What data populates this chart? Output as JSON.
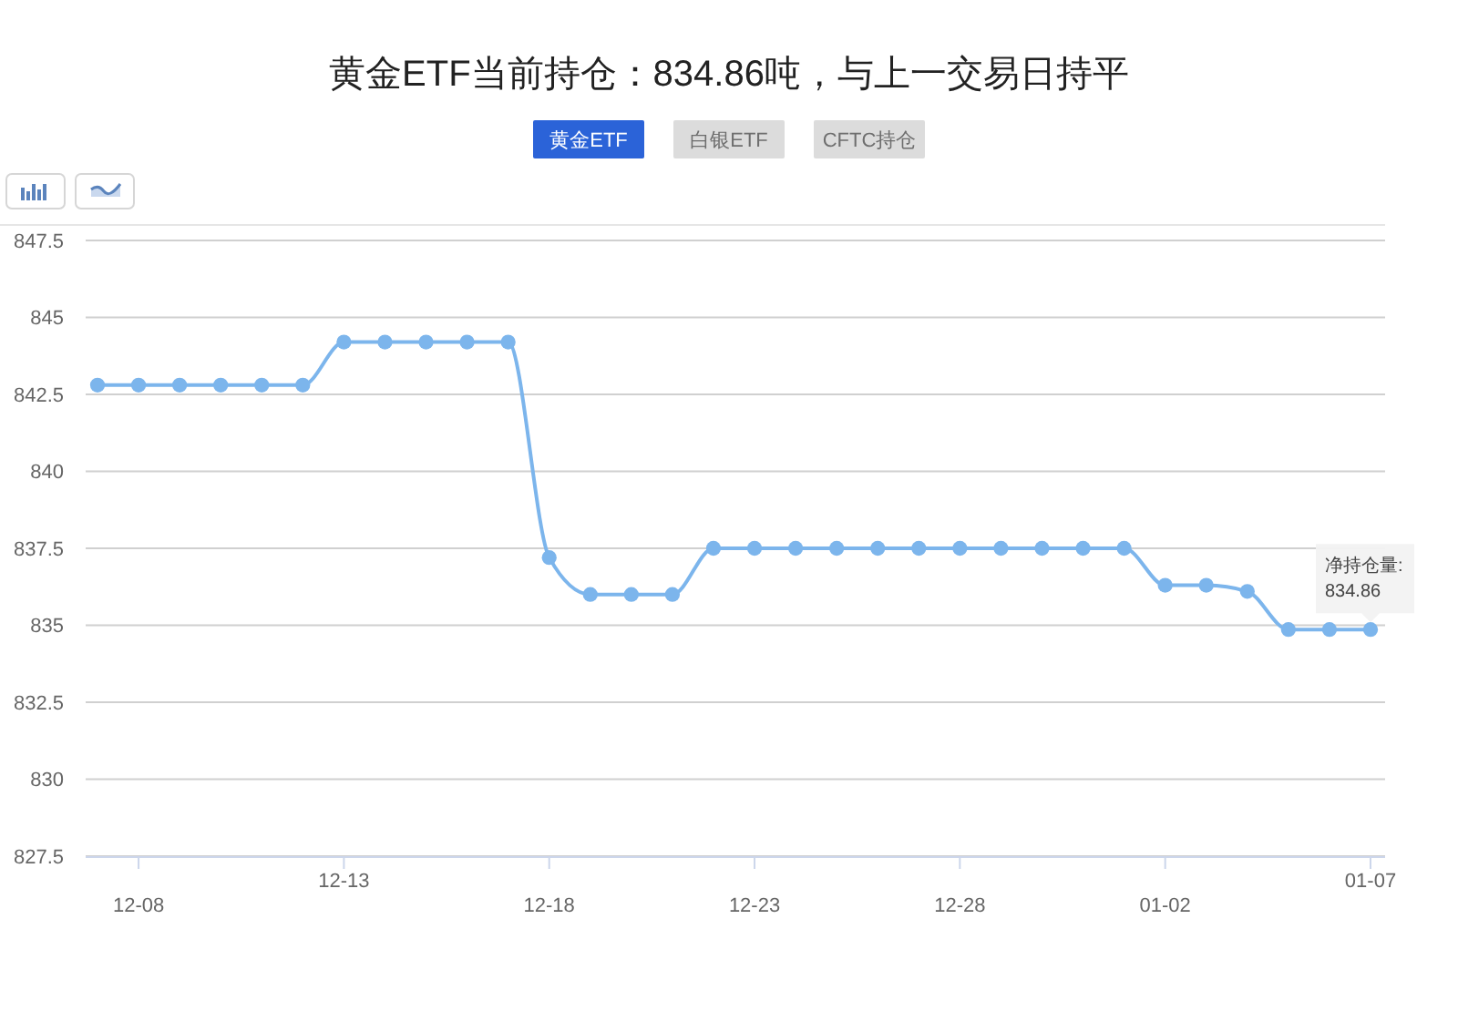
{
  "chart_data": {
    "type": "line",
    "title": "黄金ETF当前持仓：834.86吨，与上一交易日持平",
    "categories": [
      null,
      "12-08",
      null,
      null,
      null,
      null,
      "12-13",
      null,
      null,
      null,
      null,
      "12-18",
      null,
      null,
      null,
      null,
      "12-23",
      null,
      null,
      null,
      null,
      "12-28",
      null,
      null,
      null,
      null,
      "01-02",
      null,
      null,
      null,
      null,
      "01-07"
    ],
    "values": [
      842.8,
      842.8,
      842.8,
      842.8,
      842.8,
      842.8,
      844.2,
      844.2,
      844.2,
      844.2,
      844.2,
      837.2,
      836.0,
      836.0,
      836.0,
      837.5,
      837.5,
      837.5,
      837.5,
      837.5,
      837.5,
      837.5,
      837.5,
      837.5,
      837.5,
      837.5,
      836.3,
      836.3,
      836.1,
      834.86,
      834.86,
      834.86
    ],
    "color": "#7cb5ec",
    "marker": "circle",
    "grid": "y",
    "ylim": [
      827.5,
      847.5
    ],
    "yticks": [
      827.5,
      830,
      832.5,
      835,
      837.5,
      840,
      842.5,
      845,
      847.5
    ],
    "annotations": [
      "黄金ETF",
      "白银ETF",
      "CFTC持仓",
      {
        "text": "净持仓量:\n834.86",
        "x": "01-07",
        "y": 834.86
      }
    ]
  }
}
